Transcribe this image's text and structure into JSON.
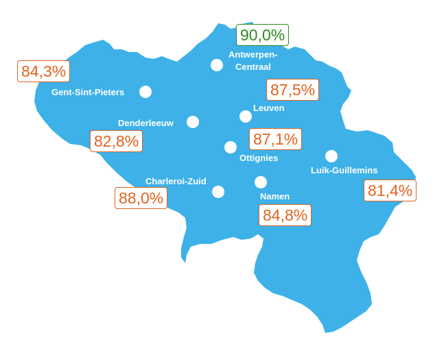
{
  "colors": {
    "map_fill": "#3db1e8",
    "label_text": "#ffffff",
    "badge_text_default": "#e0621f",
    "badge_text_highlight": "#2e8b1f"
  },
  "stations": [
    {
      "id": "antwerpen",
      "name_lines": [
        "Antwerpen-",
        "Centraal"
      ],
      "value": "90,0%",
      "highlight": true
    },
    {
      "id": "gent",
      "name_lines": [
        "Gent-Sint-Pieters"
      ],
      "value": "84,3%",
      "highlight": false
    },
    {
      "id": "leuven",
      "name_lines": [
        "Leuven"
      ],
      "value": "87,5%",
      "highlight": false
    },
    {
      "id": "denderleeuw",
      "name_lines": [
        "Denderleeuw"
      ],
      "value": "82,8%",
      "highlight": false
    },
    {
      "id": "ottignies",
      "name_lines": [
        "Ottignies"
      ],
      "value": "87,1%",
      "highlight": false
    },
    {
      "id": "luik",
      "name_lines": [
        "Luik-Guillemins"
      ],
      "value": "81,4%",
      "highlight": false
    },
    {
      "id": "charleroi",
      "name_lines": [
        "Charleroi-Zuid"
      ],
      "value": "88,0%",
      "highlight": false
    },
    {
      "id": "namen",
      "name_lines": [
        "Namen"
      ],
      "value": "84,8%",
      "highlight": false
    }
  ]
}
